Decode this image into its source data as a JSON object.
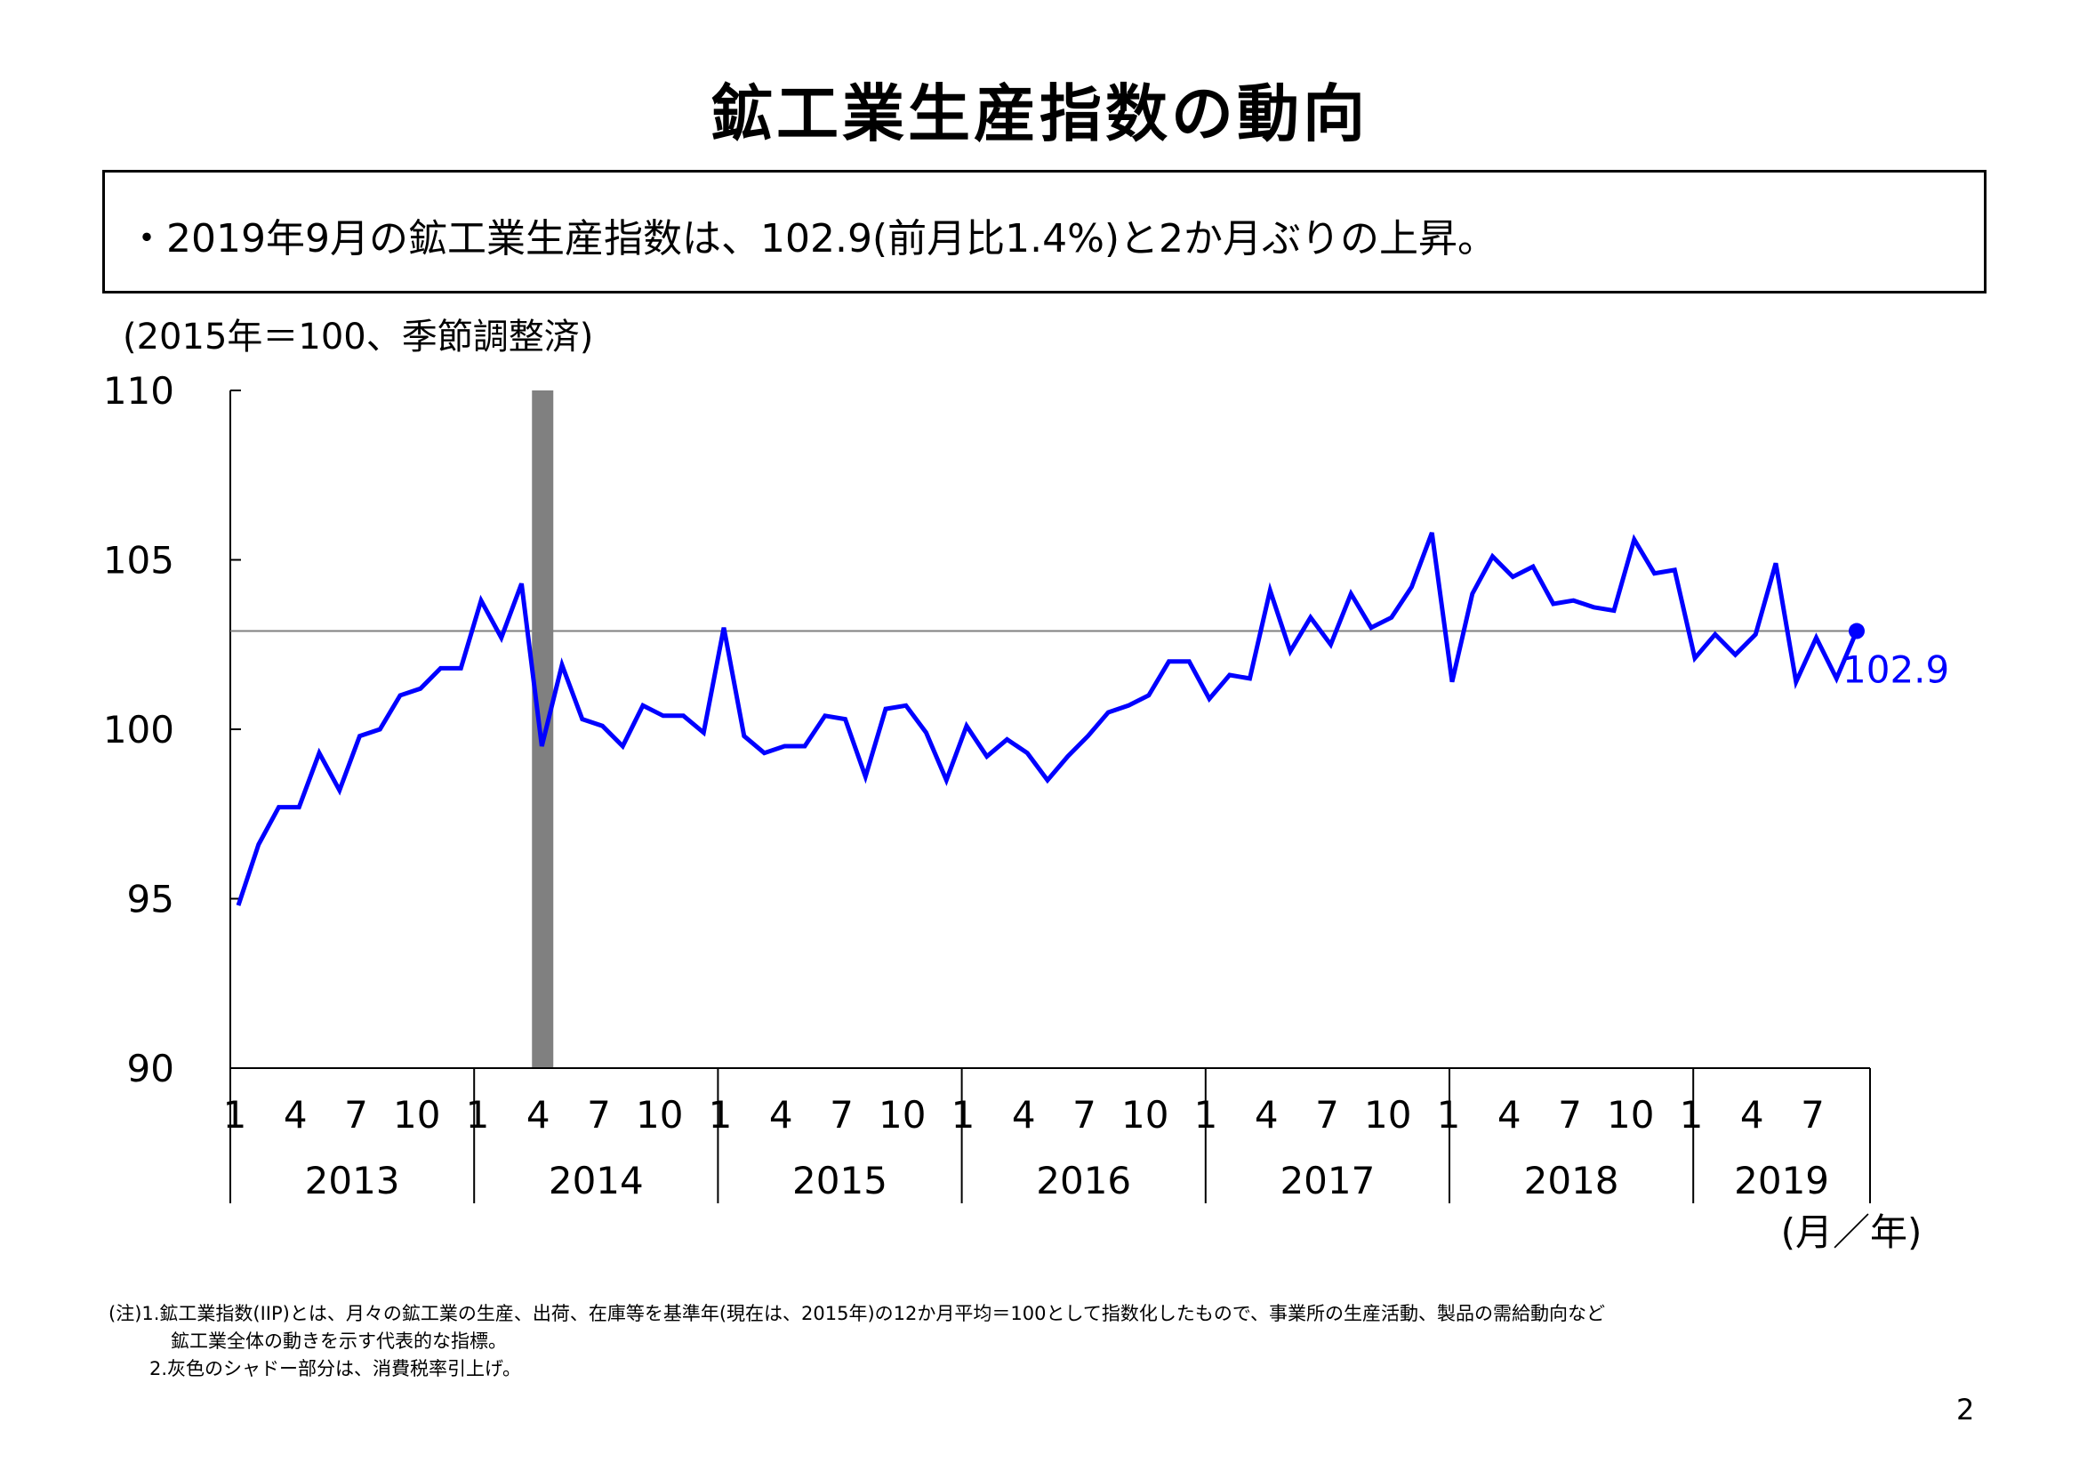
{
  "title": "鉱工業生産指数の動向",
  "summary": "・2019年9月の鉱工業生産指数は、102.9(前月比1.4%)と2か月ぶりの上昇。",
  "chart_data": {
    "type": "line",
    "unit_note": "(2015年＝100、季節調整済)",
    "x_axis_label": "(月／年)",
    "y_ticks": [
      "110",
      "105",
      "100",
      "95",
      "90"
    ],
    "ylim": [
      90,
      110
    ],
    "years": [
      "2013",
      "2014",
      "2015",
      "2016",
      "2017",
      "2018",
      "2019"
    ],
    "month_ticks": [
      "1",
      "4",
      "7",
      "10"
    ],
    "month_ticks_2019": [
      "1",
      "4",
      "7"
    ],
    "shade_note": "消費税率引上げ",
    "shade_month_index": 15,
    "reference_value": 102.9,
    "latest_label": "102.9",
    "series": [
      {
        "color": "#0000ff",
        "values": [
          94.8,
          96.6,
          97.7,
          97.7,
          99.3,
          98.2,
          99.8,
          100.0,
          101.0,
          101.2,
          101.8,
          101.8,
          103.8,
          102.7,
          104.3,
          99.5,
          101.9,
          100.3,
          100.1,
          99.5,
          100.7,
          100.4,
          100.4,
          99.9,
          103.0,
          99.8,
          99.3,
          99.5,
          99.5,
          100.4,
          100.3,
          98.6,
          100.6,
          100.7,
          99.9,
          98.5,
          100.1,
          99.2,
          99.7,
          99.3,
          98.5,
          99.2,
          99.8,
          100.5,
          100.7,
          101.0,
          102.0,
          102.0,
          100.9,
          101.6,
          101.5,
          104.1,
          102.3,
          103.3,
          102.5,
          104.0,
          103.0,
          103.3,
          104.2,
          105.8,
          101.4,
          104.0,
          105.1,
          104.5,
          104.8,
          103.7,
          103.8,
          103.6,
          103.5,
          105.6,
          104.6,
          104.7,
          102.1,
          102.8,
          102.2,
          102.8,
          104.9,
          101.4,
          102.7,
          101.5,
          102.9
        ]
      }
    ]
  },
  "notes": [
    "(注)1.鉱工業指数(IIP)とは、月々の鉱工業の生産、出荷、在庫等を基準年(現在は、2015年)の12か月平均＝100として指数化したもので、事業所の生産活動、製品の需給動向など",
    "鉱工業全体の動きを示す代表的な指標。",
    "2.灰色のシャドー部分は、消費税率引上げ。"
  ],
  "page_number": "2"
}
